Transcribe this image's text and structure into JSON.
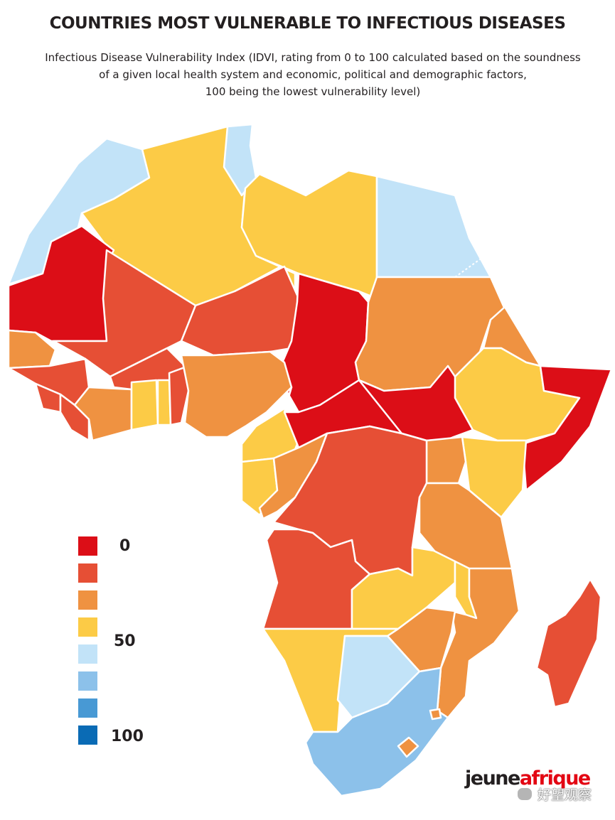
{
  "header": {
    "title": "COUNTRIES MOST VULNERABLE TO INFECTIOUS DISEASES",
    "subtitle_lines": [
      "Infectious Disease Vulnerability Index (IDVI, rating from 0 to 100 calculated based on the soundness",
      "of a given local health system and economic, political and demographic factors,",
      "100 being the lowest vulnerability level)"
    ]
  },
  "legend": {
    "swatches": [
      "#dc0e17",
      "#e64f35",
      "#ef9241",
      "#fccb46",
      "#c2e3f8",
      "#8cc1ea",
      "#4899d4",
      "#0a6bb5"
    ],
    "labels": {
      "l0": "0",
      "l50": "50",
      "l100": "100"
    }
  },
  "colors": {
    "c0": "#dc0e17",
    "c1": "#e64f35",
    "c2": "#ef9241",
    "c3": "#fccb46",
    "c4": "#c2e3f8",
    "c5": "#8cc1ea",
    "border": "#ffffff"
  },
  "regions": [
    {
      "name": "morocco",
      "level": 4
    },
    {
      "name": "algeria",
      "level": 3
    },
    {
      "name": "tunisia",
      "level": 4
    },
    {
      "name": "libya",
      "level": 3
    },
    {
      "name": "egypt",
      "level": 4
    },
    {
      "name": "mauritania",
      "level": 0
    },
    {
      "name": "mali",
      "level": 1
    },
    {
      "name": "niger",
      "level": 1
    },
    {
      "name": "chad",
      "level": 0
    },
    {
      "name": "sudan",
      "level": 2
    },
    {
      "name": "eritrea",
      "level": 2
    },
    {
      "name": "senegal",
      "level": 2
    },
    {
      "name": "guinea",
      "level": 1
    },
    {
      "name": "sierra-leone",
      "level": 1
    },
    {
      "name": "liberia",
      "level": 1
    },
    {
      "name": "cote-divoire",
      "level": 2
    },
    {
      "name": "burkina-faso",
      "level": 1
    },
    {
      "name": "ghana",
      "level": 3
    },
    {
      "name": "togo",
      "level": 3
    },
    {
      "name": "benin",
      "level": 1
    },
    {
      "name": "nigeria",
      "level": 2
    },
    {
      "name": "cameroon",
      "level": 3
    },
    {
      "name": "central-african-republic",
      "level": 0
    },
    {
      "name": "south-sudan",
      "level": 0
    },
    {
      "name": "ethiopia",
      "level": 3
    },
    {
      "name": "somalia",
      "level": 0
    },
    {
      "name": "kenya",
      "level": 3
    },
    {
      "name": "uganda",
      "level": 2
    },
    {
      "name": "gabon",
      "level": 3
    },
    {
      "name": "congo",
      "level": 2
    },
    {
      "name": "drc",
      "level": 1
    },
    {
      "name": "tanzania",
      "level": 2
    },
    {
      "name": "angola",
      "level": 1
    },
    {
      "name": "zambia",
      "level": 3
    },
    {
      "name": "malawi",
      "level": 3
    },
    {
      "name": "mozambique",
      "level": 2
    },
    {
      "name": "zimbabwe",
      "level": 2
    },
    {
      "name": "namibia",
      "level": 3
    },
    {
      "name": "botswana",
      "level": 4
    },
    {
      "name": "south-africa",
      "level": 5
    },
    {
      "name": "lesotho",
      "level": 2
    },
    {
      "name": "swaziland",
      "level": 2
    },
    {
      "name": "madagascar",
      "level": 1
    }
  ],
  "brand": {
    "part1": "jeune",
    "part2": "afrique"
  },
  "watermark": {
    "text": "好望观察",
    "icon": "wechat-icon"
  }
}
